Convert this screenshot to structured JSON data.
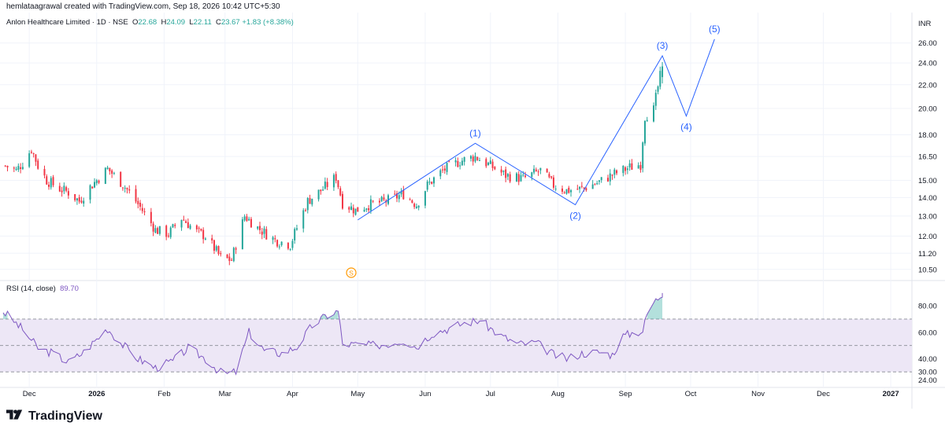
{
  "credit": "hemlataagrawal created with TradingView.com, Sep 18, 2026 10:42 UTC+5:30",
  "brand": "TradingView",
  "legend": {
    "symbol": "Anlon Healthcare Limited · 1D · NSE",
    "o_label": "O",
    "o_value": "22.68",
    "h_label": "H",
    "h_value": "24.09",
    "l_label": "L",
    "l_value": "22.11",
    "c_label": "C",
    "c_value": "23.67",
    "change": "+1.83 (+8.38%)"
  },
  "rsi_legend": {
    "label": "RSI (14, close)",
    "value": "89.70"
  },
  "currency": "INR",
  "colors": {
    "up": "#26a69a",
    "down": "#f23645",
    "wave": "#2962ff",
    "rsi": "#7e57c2",
    "rsi_band": "#ede7f6",
    "dividend": "#ff9800"
  },
  "chart_data": [
    {
      "type": "candlestick",
      "title": "Anlon Healthcare Limited · 1D · NSE",
      "y_scale": "log",
      "ylim": [
        10.2,
        29.0
      ],
      "y_ticks": [
        "26.00",
        "24.00",
        "22.00",
        "20.00",
        "18.00",
        "16.50",
        "15.00",
        "14.00",
        "13.00",
        "12.00",
        "11.20",
        "10.50"
      ],
      "x_ticks": [
        "Dec",
        "2026",
        "Feb",
        "Mar",
        "Apr",
        "May",
        "Jun",
        "Jul",
        "Aug",
        "Sep",
        "Oct",
        "Nov",
        "Dec",
        "2027"
      ],
      "x_range": [
        "2025-11-19",
        "2027-01-10"
      ],
      "grid": true,
      "price_path": [
        [
          "2025-11-20",
          15.9
        ],
        [
          "2025-11-25",
          15.6
        ],
        [
          "2025-11-28",
          16.1
        ],
        [
          "2025-12-02",
          17.0
        ],
        [
          "2025-12-05",
          15.9
        ],
        [
          "2025-12-09",
          15.0
        ],
        [
          "2025-12-15",
          14.5
        ],
        [
          "2025-12-19",
          14.3
        ],
        [
          "2025-12-24",
          13.8
        ],
        [
          "2025-12-29",
          14.6
        ],
        [
          "2026-01-06",
          15.7
        ],
        [
          "2026-01-12",
          14.9
        ],
        [
          "2026-01-16",
          14.3
        ],
        [
          "2026-01-22",
          13.3
        ],
        [
          "2026-01-28",
          12.3
        ],
        [
          "2026-02-03",
          12.1
        ],
        [
          "2026-02-09",
          12.9
        ],
        [
          "2026-02-16",
          12.2
        ],
        [
          "2026-02-20",
          12.0
        ],
        [
          "2026-02-27",
          11.0
        ],
        [
          "2026-03-04",
          10.9
        ],
        [
          "2026-03-10",
          13.0
        ],
        [
          "2026-03-16",
          12.4
        ],
        [
          "2026-03-24",
          11.8
        ],
        [
          "2026-03-31",
          11.6
        ],
        [
          "2026-04-03",
          12.4
        ],
        [
          "2026-04-08",
          13.8
        ],
        [
          "2026-04-15",
          14.5
        ],
        [
          "2026-04-21",
          15.2
        ],
        [
          "2026-04-24",
          13.7
        ],
        [
          "2026-04-30",
          13.3
        ],
        [
          "2026-05-06",
          13.6
        ],
        [
          "2026-05-14",
          13.8
        ],
        [
          "2026-05-22",
          14.2
        ],
        [
          "2026-05-28",
          13.6
        ],
        [
          "2026-06-02",
          14.7
        ],
        [
          "2026-06-09",
          15.6
        ],
        [
          "2026-06-17",
          16.2
        ],
        [
          "2026-06-24",
          16.5
        ],
        [
          "2026-07-01",
          15.9
        ],
        [
          "2026-07-08",
          15.3
        ],
        [
          "2026-07-16",
          15.1
        ],
        [
          "2026-07-24",
          15.6
        ],
        [
          "2026-07-30",
          14.7
        ],
        [
          "2026-08-05",
          14.4
        ],
        [
          "2026-08-12",
          14.5
        ],
        [
          "2026-08-20",
          14.9
        ],
        [
          "2026-08-27",
          15.4
        ],
        [
          "2026-09-03",
          15.8
        ],
        [
          "2026-09-08",
          16.0
        ],
        [
          "2026-09-10",
          19.4
        ],
        [
          "2026-09-14",
          19.9
        ],
        [
          "2026-09-16",
          21.8
        ],
        [
          "2026-09-18",
          23.7
        ]
      ],
      "wave_counts": [
        {
          "label": "(1)",
          "x": "2026-06-24",
          "y": 17.4,
          "pos": "above"
        },
        {
          "label": "(2)",
          "x": "2026-08-09",
          "y": 13.6,
          "pos": "below"
        },
        {
          "label": "(3)",
          "x": "2026-09-18",
          "y": 24.7,
          "pos": "above"
        },
        {
          "label": "(4)",
          "x": "2026-09-29",
          "y": 19.4,
          "pos": "below"
        },
        {
          "label": "(5)",
          "x": "2026-10-12",
          "y": 26.4,
          "pos": "above"
        }
      ],
      "wave_path": [
        [
          "2026-05-01",
          12.8
        ],
        [
          "2026-06-24",
          17.4
        ],
        [
          "2026-08-09",
          13.6
        ],
        [
          "2026-09-18",
          24.7
        ],
        [
          "2026-09-29",
          19.4
        ],
        [
          "2026-10-12",
          26.4
        ]
      ],
      "dividend_marker": {
        "label": "S",
        "x": "2026-04-28"
      },
      "last": {
        "open": 22.68,
        "high": 24.09,
        "low": 22.11,
        "close": 23.67
      }
    },
    {
      "type": "line",
      "title": "RSI (14, close)",
      "ylim": [
        20,
        95
      ],
      "y_ticks": [
        "80.00",
        "60.00",
        "40.00",
        "30.00",
        "24.00"
      ],
      "bands": [
        70,
        50,
        30
      ],
      "last_value": 89.7,
      "rsi_path": [
        [
          "2025-11-19",
          76
        ],
        [
          "2025-11-28",
          62
        ],
        [
          "2025-12-05",
          48
        ],
        [
          "2025-12-12",
          44
        ],
        [
          "2025-12-19",
          37
        ],
        [
          "2025-12-26",
          45
        ],
        [
          "2026-01-06",
          63
        ],
        [
          "2026-01-12",
          52
        ],
        [
          "2026-01-20",
          40
        ],
        [
          "2026-01-28",
          33
        ],
        [
          "2026-02-05",
          38
        ],
        [
          "2026-02-12",
          48
        ],
        [
          "2026-02-20",
          40
        ],
        [
          "2026-02-28",
          28
        ],
        [
          "2026-03-06",
          30
        ],
        [
          "2026-03-12",
          60
        ],
        [
          "2026-03-19",
          46
        ],
        [
          "2026-03-27",
          44
        ],
        [
          "2026-04-03",
          49
        ],
        [
          "2026-04-10",
          65
        ],
        [
          "2026-04-17",
          73
        ],
        [
          "2026-04-22",
          76
        ],
        [
          "2026-04-24",
          51
        ],
        [
          "2026-05-06",
          50
        ],
        [
          "2026-05-14",
          51
        ],
        [
          "2026-05-22",
          54
        ],
        [
          "2026-05-28",
          49
        ],
        [
          "2026-06-04",
          59
        ],
        [
          "2026-06-12",
          63
        ],
        [
          "2026-06-19",
          67
        ],
        [
          "2026-06-26",
          69
        ],
        [
          "2026-07-06",
          57
        ],
        [
          "2026-07-14",
          51
        ],
        [
          "2026-07-22",
          52
        ],
        [
          "2026-07-30",
          43
        ],
        [
          "2026-08-05",
          40
        ],
        [
          "2026-08-12",
          44
        ],
        [
          "2026-08-20",
          45
        ],
        [
          "2026-08-26",
          43
        ],
        [
          "2026-08-31",
          57
        ],
        [
          "2026-09-05",
          60
        ],
        [
          "2026-09-09",
          61
        ],
        [
          "2026-09-12",
          80
        ],
        [
          "2026-09-15",
          84
        ],
        [
          "2026-09-18",
          89.7
        ]
      ]
    }
  ]
}
